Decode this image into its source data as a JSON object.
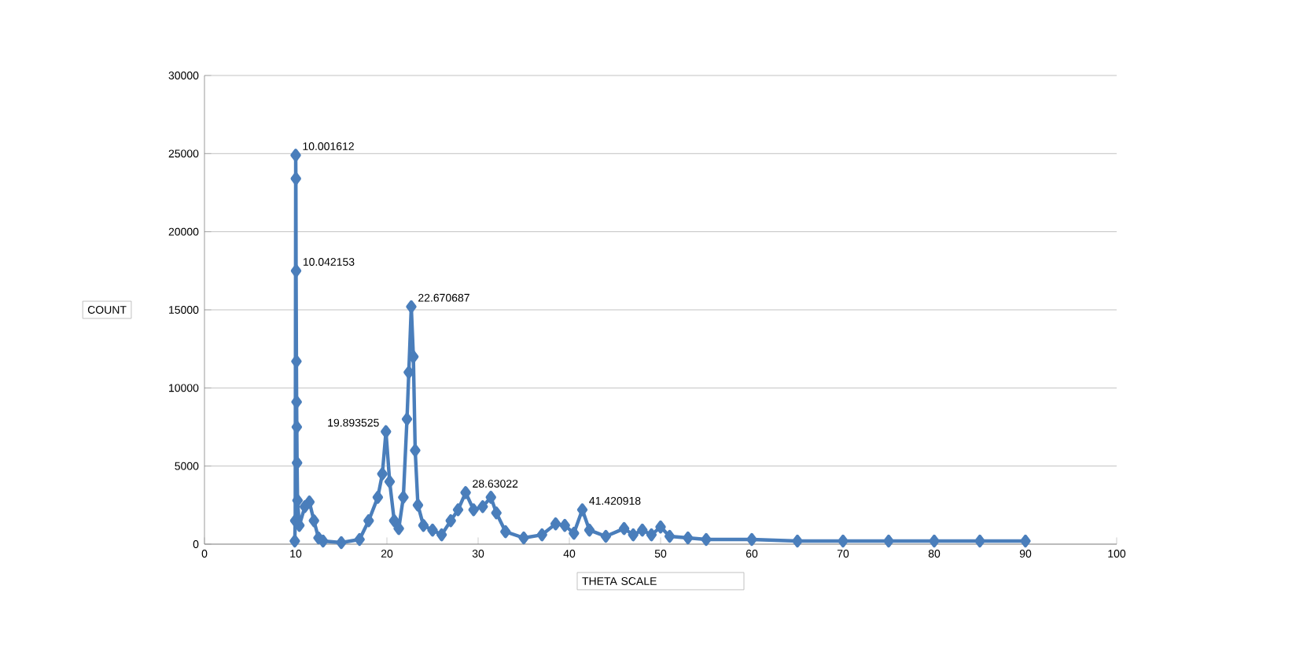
{
  "chart_data": {
    "type": "line",
    "xlabel": "THETA SCALE",
    "ylabel": "COUNT",
    "marker": "diamond",
    "grid": "y",
    "xlim": [
      0,
      100
    ],
    "xticks": [
      0,
      10,
      20,
      30,
      40,
      50,
      60,
      70,
      80,
      90,
      100
    ],
    "ylim": [
      0,
      30000
    ],
    "yticks": [
      0,
      5000,
      10000,
      15000,
      20000,
      25000,
      30000
    ],
    "annotations": [
      {
        "text": "10.001612",
        "x": 10.001612,
        "y": 24900
      },
      {
        "text": "10.042153",
        "x": 10.042153,
        "y": 17500
      },
      {
        "text": "22.670687",
        "x": 22.670687,
        "y": 15200
      },
      {
        "text": "19.893525",
        "x": 19.893525,
        "y": 7200
      },
      {
        "text": "28.63022",
        "x": 28.63022,
        "y": 3300
      },
      {
        "text": "41.420918",
        "x": 41.420918,
        "y": 2200
      }
    ],
    "series": [
      {
        "color": "#4a7ebb",
        "x": [
          9.9,
          9.95,
          10.001612,
          10.02,
          10.042153,
          10.08,
          10.1,
          10.12,
          10.15,
          10.2,
          10.4,
          11,
          11.5,
          12,
          12.5,
          13,
          15,
          17,
          18,
          19,
          19.5,
          19.893525,
          20.3,
          20.8,
          21.3,
          21.8,
          22.2,
          22.4,
          22.670687,
          22.9,
          23.1,
          23.4,
          24,
          25,
          26,
          27,
          27.8,
          28.63022,
          29.5,
          30.5,
          31.4,
          32,
          33,
          35,
          37,
          38.5,
          39.5,
          40.5,
          41.420918,
          42.2,
          44,
          46,
          47,
          48,
          49,
          50,
          51,
          53,
          55,
          60,
          65,
          70,
          75,
          80,
          85,
          90
        ],
        "values": [
          200,
          1500,
          24900,
          23400,
          17500,
          11700,
          9100,
          7500,
          5200,
          2800,
          1200,
          2400,
          2700,
          1500,
          400,
          200,
          100,
          300,
          1500,
          3000,
          4500,
          7200,
          4000,
          1500,
          1000,
          3000,
          8000,
          11000,
          15200,
          12000,
          6000,
          2500,
          1200,
          900,
          600,
          1500,
          2200,
          3300,
          2200,
          2400,
          3000,
          2000,
          800,
          400,
          600,
          1300,
          1200,
          700,
          2200,
          900,
          500,
          1000,
          600,
          900,
          600,
          1100,
          500,
          400,
          300,
          300,
          200,
          200,
          200,
          200,
          200,
          200
        ]
      }
    ]
  }
}
